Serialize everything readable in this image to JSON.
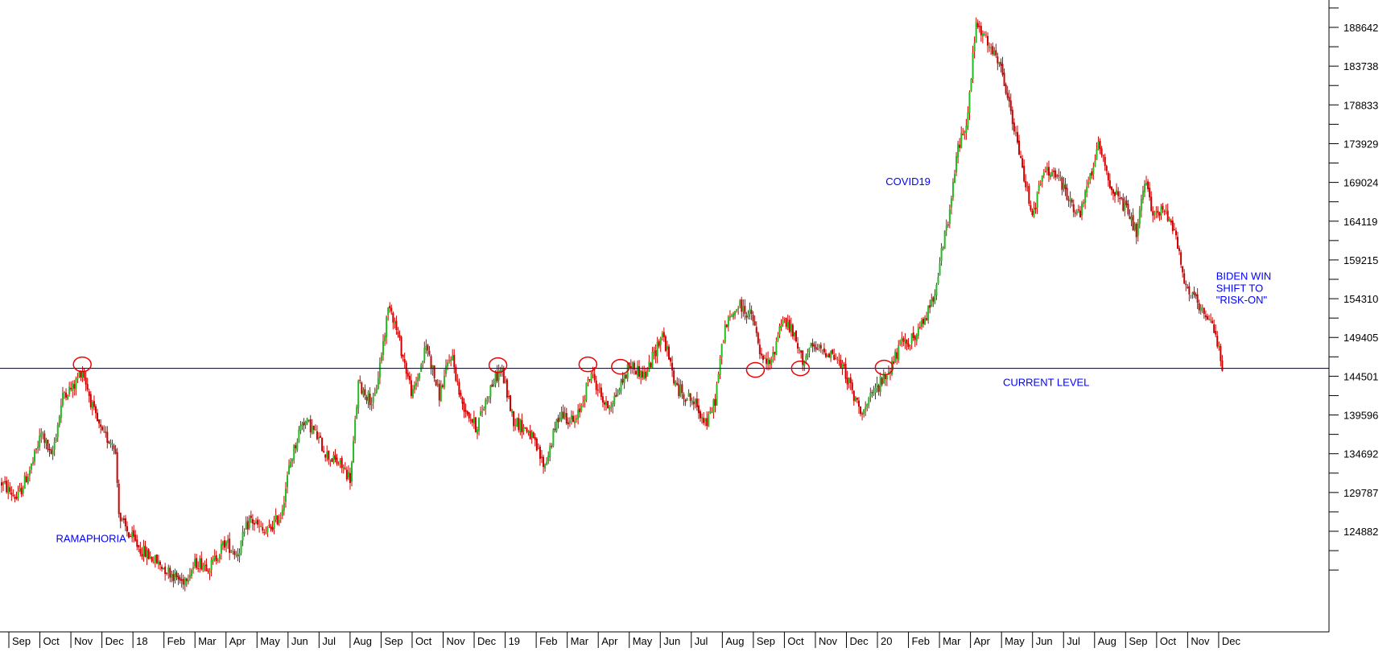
{
  "chart_data": {
    "type": "candlestick",
    "title": "",
    "xlabel": "",
    "ylabel": "",
    "ylim": [
      118000,
      196000
    ],
    "y_ticks": [
      188642,
      183738,
      178833,
      173929,
      169024,
      164119,
      159215,
      154310,
      149405,
      144501,
      139596,
      134692,
      129787,
      124882
    ],
    "x_ticks": [
      "Sep",
      "Oct",
      "Nov",
      "Dec",
      "18",
      "Feb",
      "Mar",
      "Apr",
      "May",
      "Jun",
      "Jul",
      "Aug",
      "Sep",
      "Oct",
      "Nov",
      "Dec",
      "19",
      "Feb",
      "Mar",
      "Apr",
      "May",
      "Jun",
      "Jul",
      "Aug",
      "Sep",
      "Oct",
      "Nov",
      "Dec",
      "20",
      "Feb",
      "Mar",
      "Apr",
      "May",
      "Jun",
      "Jul",
      "Aug",
      "Sep",
      "Oct",
      "Nov",
      "Dec"
    ],
    "x_range": [
      0,
      82
    ],
    "reference_line": {
      "value": 145500,
      "label": "CURRENT LEVEL",
      "color": "#0000ff"
    },
    "close_path": [
      {
        "x": 0.0,
        "y": 131000
      },
      {
        "x": 1.0,
        "y": 129000
      },
      {
        "x": 2.0,
        "y": 133500
      },
      {
        "x": 2.6,
        "y": 137500
      },
      {
        "x": 3.2,
        "y": 134000
      },
      {
        "x": 4.0,
        "y": 142500
      },
      {
        "x": 4.6,
        "y": 143000
      },
      {
        "x": 5.2,
        "y": 145500
      },
      {
        "x": 6.0,
        "y": 139500
      },
      {
        "x": 6.5,
        "y": 137000
      },
      {
        "x": 7.3,
        "y": 136000
      },
      {
        "x": 7.6,
        "y": 126500
      },
      {
        "x": 8.2,
        "y": 124500
      },
      {
        "x": 9.0,
        "y": 122500
      },
      {
        "x": 10.0,
        "y": 121000
      },
      {
        "x": 11.0,
        "y": 119500
      },
      {
        "x": 11.6,
        "y": 118500
      },
      {
        "x": 12.6,
        "y": 121000
      },
      {
        "x": 13.5,
        "y": 120500
      },
      {
        "x": 14.4,
        "y": 123500
      },
      {
        "x": 15.2,
        "y": 122000
      },
      {
        "x": 16.0,
        "y": 126500
      },
      {
        "x": 17.0,
        "y": 124500
      },
      {
        "x": 18.0,
        "y": 127000
      },
      {
        "x": 18.6,
        "y": 133500
      },
      {
        "x": 19.4,
        "y": 139000
      },
      {
        "x": 20.0,
        "y": 138000
      },
      {
        "x": 21.0,
        "y": 134500
      },
      {
        "x": 22.0,
        "y": 133000
      },
      {
        "x": 22.5,
        "y": 131500
      },
      {
        "x": 23.0,
        "y": 143500
      },
      {
        "x": 24.0,
        "y": 141000
      },
      {
        "x": 25.0,
        "y": 154000
      },
      {
        "x": 25.5,
        "y": 150000
      },
      {
        "x": 26.5,
        "y": 142000
      },
      {
        "x": 27.4,
        "y": 148500
      },
      {
        "x": 28.2,
        "y": 142000
      },
      {
        "x": 29.0,
        "y": 147500
      },
      {
        "x": 29.6,
        "y": 141500
      },
      {
        "x": 30.6,
        "y": 138000
      },
      {
        "x": 31.5,
        "y": 143000
      },
      {
        "x": 32.2,
        "y": 145500
      },
      {
        "x": 33.0,
        "y": 139000
      },
      {
        "x": 34.0,
        "y": 137500
      },
      {
        "x": 35.0,
        "y": 133000
      },
      {
        "x": 36.0,
        "y": 140000
      },
      {
        "x": 37.0,
        "y": 138500
      },
      {
        "x": 38.0,
        "y": 145000
      },
      {
        "x": 39.0,
        "y": 140500
      },
      {
        "x": 39.6,
        "y": 142000
      },
      {
        "x": 40.5,
        "y": 146000
      },
      {
        "x": 41.5,
        "y": 144500
      },
      {
        "x": 42.6,
        "y": 150000
      },
      {
        "x": 43.5,
        "y": 143000
      },
      {
        "x": 44.5,
        "y": 141500
      },
      {
        "x": 45.5,
        "y": 138500
      },
      {
        "x": 46.0,
        "y": 141500
      },
      {
        "x": 46.6,
        "y": 150500
      },
      {
        "x": 47.5,
        "y": 153500
      },
      {
        "x": 48.4,
        "y": 152000
      },
      {
        "x": 49.0,
        "y": 146500
      },
      {
        "x": 49.6,
        "y": 146000
      },
      {
        "x": 50.3,
        "y": 152000
      },
      {
        "x": 51.0,
        "y": 150000
      },
      {
        "x": 51.6,
        "y": 146500
      },
      {
        "x": 52.2,
        "y": 148000
      },
      {
        "x": 53.5,
        "y": 147500
      },
      {
        "x": 54.4,
        "y": 145000
      },
      {
        "x": 55.0,
        "y": 141500
      },
      {
        "x": 55.6,
        "y": 140000
      },
      {
        "x": 56.4,
        "y": 143000
      },
      {
        "x": 57.0,
        "y": 144500
      },
      {
        "x": 58.0,
        "y": 148500
      },
      {
        "x": 59.0,
        "y": 149500
      },
      {
        "x": 60.0,
        "y": 154000
      },
      {
        "x": 60.6,
        "y": 160000
      },
      {
        "x": 61.2,
        "y": 166000
      },
      {
        "x": 61.6,
        "y": 173000
      },
      {
        "x": 62.3,
        "y": 177500
      },
      {
        "x": 62.8,
        "y": 189000
      },
      {
        "x": 63.6,
        "y": 186500
      },
      {
        "x": 64.5,
        "y": 183000
      },
      {
        "x": 65.2,
        "y": 176500
      },
      {
        "x": 66.0,
        "y": 169000
      },
      {
        "x": 66.5,
        "y": 165000
      },
      {
        "x": 67.2,
        "y": 170500
      },
      {
        "x": 68.0,
        "y": 170000
      },
      {
        "x": 68.8,
        "y": 167000
      },
      {
        "x": 69.5,
        "y": 164500
      },
      {
        "x": 70.2,
        "y": 170000
      },
      {
        "x": 70.8,
        "y": 174000
      },
      {
        "x": 71.5,
        "y": 168500
      },
      {
        "x": 72.5,
        "y": 165500
      },
      {
        "x": 73.2,
        "y": 162500
      },
      {
        "x": 73.7,
        "y": 169000
      },
      {
        "x": 74.3,
        "y": 165000
      },
      {
        "x": 75.0,
        "y": 165500
      },
      {
        "x": 75.7,
        "y": 163000
      },
      {
        "x": 76.2,
        "y": 156500
      },
      {
        "x": 76.8,
        "y": 154500
      },
      {
        "x": 77.5,
        "y": 152000
      },
      {
        "x": 78.2,
        "y": 150500
      },
      {
        "x": 78.7,
        "y": 146000
      }
    ],
    "annotations": [
      {
        "text": "RAMAPHORIA",
        "x": 3.5,
        "y": 123500,
        "color": "#0000ff"
      },
      {
        "text": "COVID19",
        "x": 57.0,
        "y": 168700,
        "color": "#0000ff"
      },
      {
        "text": "BIDEN WIN",
        "x": 78.3,
        "y": 156700,
        "color": "#0000ff"
      },
      {
        "text": "SHIFT TO",
        "x": 78.3,
        "y": 155200,
        "color": "#0000ff"
      },
      {
        "text": "\"RISK-ON\"",
        "x": 78.3,
        "y": 153700,
        "color": "#0000ff"
      }
    ],
    "highlight_circles": [
      {
        "x": 5.2,
        "y": 146000
      },
      {
        "x": 32.0,
        "y": 145900
      },
      {
        "x": 37.8,
        "y": 146000
      },
      {
        "x": 39.9,
        "y": 145700
      },
      {
        "x": 48.6,
        "y": 145300
      },
      {
        "x": 51.5,
        "y": 145500
      },
      {
        "x": 56.9,
        "y": 145600
      }
    ],
    "colors": {
      "up": "#22bb22",
      "down": "#cc0000",
      "circle": "#ee0000",
      "reference": "#0000ff",
      "axis": "#000000"
    }
  }
}
